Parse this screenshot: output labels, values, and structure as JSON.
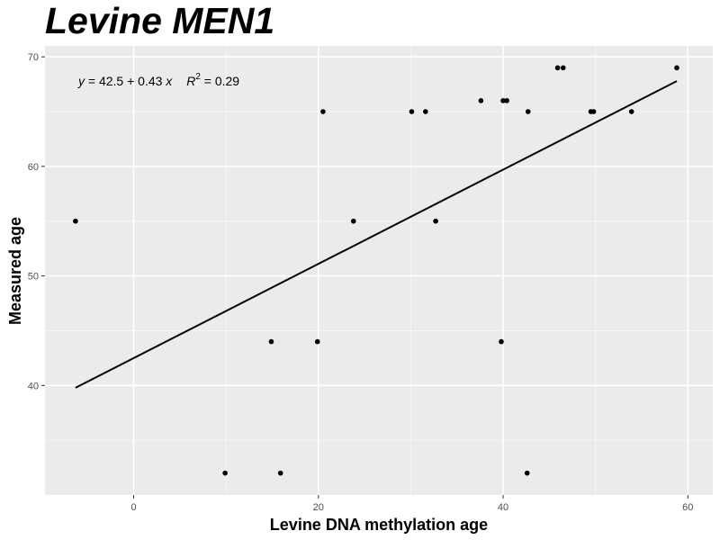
{
  "chart_data": {
    "type": "scatter",
    "title": "Levine MEN1",
    "xlabel": "Levine DNA methylation age",
    "ylabel": "Measured age",
    "xlim": [
      -9.6,
      62.7
    ],
    "ylim": [
      30.0,
      71.0
    ],
    "xticks": [
      0,
      20,
      40,
      60
    ],
    "yticks": [
      40,
      50,
      60,
      70
    ],
    "grid": true,
    "background": "#ebebeb",
    "points": [
      {
        "x": -6.3,
        "y": 55
      },
      {
        "x": 9.9,
        "y": 32
      },
      {
        "x": 14.9,
        "y": 44
      },
      {
        "x": 15.9,
        "y": 32
      },
      {
        "x": 19.9,
        "y": 44
      },
      {
        "x": 20.5,
        "y": 65
      },
      {
        "x": 23.8,
        "y": 55
      },
      {
        "x": 30.1,
        "y": 65
      },
      {
        "x": 31.6,
        "y": 65
      },
      {
        "x": 32.7,
        "y": 55
      },
      {
        "x": 37.6,
        "y": 66
      },
      {
        "x": 39.8,
        "y": 44
      },
      {
        "x": 40.0,
        "y": 66
      },
      {
        "x": 40.4,
        "y": 66
      },
      {
        "x": 42.6,
        "y": 32
      },
      {
        "x": 42.7,
        "y": 65
      },
      {
        "x": 45.9,
        "y": 69
      },
      {
        "x": 46.5,
        "y": 69
      },
      {
        "x": 49.5,
        "y": 65
      },
      {
        "x": 49.8,
        "y": 65
      },
      {
        "x": 53.9,
        "y": 65
      },
      {
        "x": 58.8,
        "y": 69
      }
    ],
    "regression": {
      "intercept": 42.5,
      "slope": 0.43,
      "r2": 0.29
    },
    "annotation": {
      "y_var": "y",
      "eq_mid": " = 42.5 + 0.43 ",
      "x_var": "x",
      "r_var": "R",
      "r_exp": "2",
      "r_val": " = 0.29"
    }
  }
}
